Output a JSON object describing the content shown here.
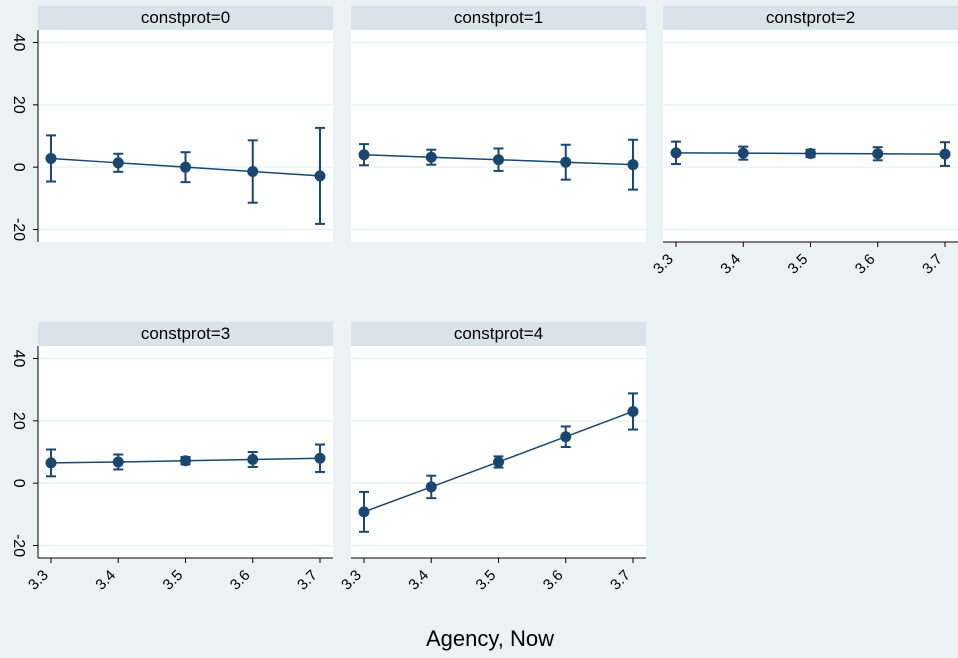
{
  "xlabel": "Agency, Now",
  "colors": {
    "background": "#eaf2f3",
    "plot_bg": "#ffffff",
    "header_bg": "#d8e4ea",
    "series": "#1a476f",
    "grid": "#eaf2f3",
    "text": "#000000"
  },
  "chart_data": [
    {
      "type": "line",
      "panel_title": "constprot=0",
      "x": [
        3.3,
        3.4,
        3.5,
        3.6,
        3.7
      ],
      "xticks": [
        "3.3",
        "3.4",
        "3.5",
        "3.6",
        "3.7"
      ],
      "yticks": [
        "-20",
        "0",
        "20",
        "40"
      ],
      "ylim": [
        -24,
        44
      ],
      "y": [
        2.8,
        1.4,
        0.0,
        -1.4,
        -2.8
      ],
      "y_lower": [
        -4.6,
        -1.5,
        -4.8,
        -11.4,
        -18.2
      ],
      "y_upper": [
        10.2,
        4.3,
        4.8,
        8.6,
        12.6
      ]
    },
    {
      "type": "line",
      "panel_title": "constprot=1",
      "x": [
        3.3,
        3.4,
        3.5,
        3.6,
        3.7
      ],
      "xticks": [
        "3.3",
        "3.4",
        "3.5",
        "3.6",
        "3.7"
      ],
      "yticks": [
        "-20",
        "0",
        "20",
        "40"
      ],
      "ylim": [
        -24,
        44
      ],
      "y": [
        4.0,
        3.2,
        2.4,
        1.6,
        0.8
      ],
      "y_lower": [
        0.6,
        0.8,
        -1.2,
        -4.0,
        -7.2
      ],
      "y_upper": [
        7.4,
        5.6,
        6.0,
        7.2,
        8.8
      ]
    },
    {
      "type": "line",
      "panel_title": "constprot=2",
      "x": [
        3.3,
        3.4,
        3.5,
        3.6,
        3.7
      ],
      "xticks": [
        "3.3",
        "3.4",
        "3.5",
        "3.6",
        "3.7"
      ],
      "yticks": [
        "-20",
        "0",
        "20",
        "40"
      ],
      "ylim": [
        -24,
        44
      ],
      "y": [
        4.6,
        4.5,
        4.4,
        4.3,
        4.2
      ],
      "y_lower": [
        1.0,
        2.4,
        3.2,
        2.2,
        0.4
      ],
      "y_upper": [
        8.2,
        6.6,
        5.6,
        6.4,
        8.0
      ]
    },
    {
      "type": "line",
      "panel_title": "constprot=3",
      "x": [
        3.3,
        3.4,
        3.5,
        3.6,
        3.7
      ],
      "xticks": [
        "3.3",
        "3.4",
        "3.5",
        "3.6",
        "3.7"
      ],
      "yticks": [
        "-20",
        "0",
        "20",
        "40"
      ],
      "ylim": [
        -24,
        44
      ],
      "y": [
        6.5,
        6.8,
        7.2,
        7.6,
        8.0
      ],
      "y_lower": [
        2.2,
        4.4,
        6.0,
        5.2,
        3.6
      ],
      "y_upper": [
        10.8,
        9.2,
        8.4,
        10.0,
        12.4
      ]
    },
    {
      "type": "line",
      "panel_title": "constprot=4",
      "x": [
        3.3,
        3.4,
        3.5,
        3.6,
        3.7
      ],
      "xticks": [
        "3.3",
        "3.4",
        "3.5",
        "3.6",
        "3.7"
      ],
      "yticks": [
        "-20",
        "0",
        "20",
        "40"
      ],
      "ylim": [
        -24,
        44
      ],
      "y": [
        -9.2,
        -1.2,
        6.8,
        14.9,
        23.0
      ],
      "y_lower": [
        -15.6,
        -4.8,
        5.0,
        11.6,
        17.2
      ],
      "y_upper": [
        -2.8,
        2.4,
        8.6,
        18.2,
        28.8
      ]
    }
  ]
}
